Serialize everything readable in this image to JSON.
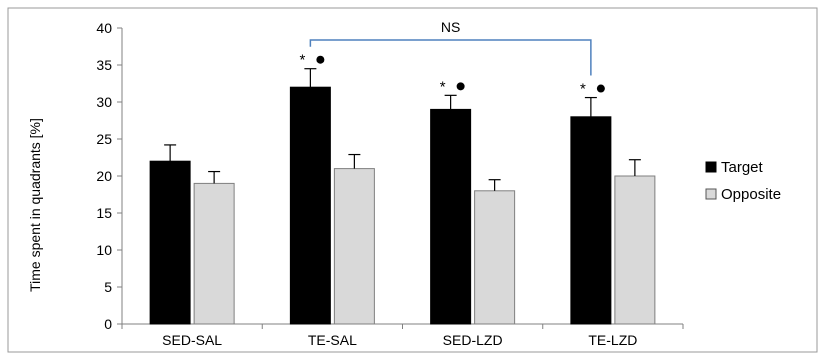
{
  "chart_data": {
    "type": "bar",
    "categories": [
      "SED-SAL",
      "TE-SAL",
      "SED-LZD",
      "TE-LZD"
    ],
    "series": [
      {
        "name": "Target",
        "values": [
          22,
          32,
          29,
          28
        ],
        "errors": [
          2.2,
          2.5,
          1.9,
          2.6
        ],
        "color": "#000000"
      },
      {
        "name": "Opposite",
        "values": [
          19,
          21,
          18,
          20
        ],
        "errors": [
          1.6,
          1.9,
          1.5,
          2.2
        ],
        "color": "#d9d9d9"
      }
    ],
    "title": "",
    "xlabel": "",
    "ylabel": "Time spent in quadrants [%]",
    "ylim": [
      0,
      40
    ],
    "yticks": [
      0,
      5,
      10,
      15,
      20,
      25,
      30,
      35,
      40
    ],
    "grid": false,
    "legend_position": "right",
    "annotations": {
      "significance_marks": [
        {
          "category": "TE-SAL",
          "text": "*"
        },
        {
          "category": "SED-LZD",
          "text": "*"
        },
        {
          "category": "TE-LZD",
          "text": "*"
        }
      ],
      "bracket": {
        "from": "TE-SAL",
        "to": "TE-LZD",
        "label": "NS",
        "color": "#4f81bd"
      }
    }
  }
}
